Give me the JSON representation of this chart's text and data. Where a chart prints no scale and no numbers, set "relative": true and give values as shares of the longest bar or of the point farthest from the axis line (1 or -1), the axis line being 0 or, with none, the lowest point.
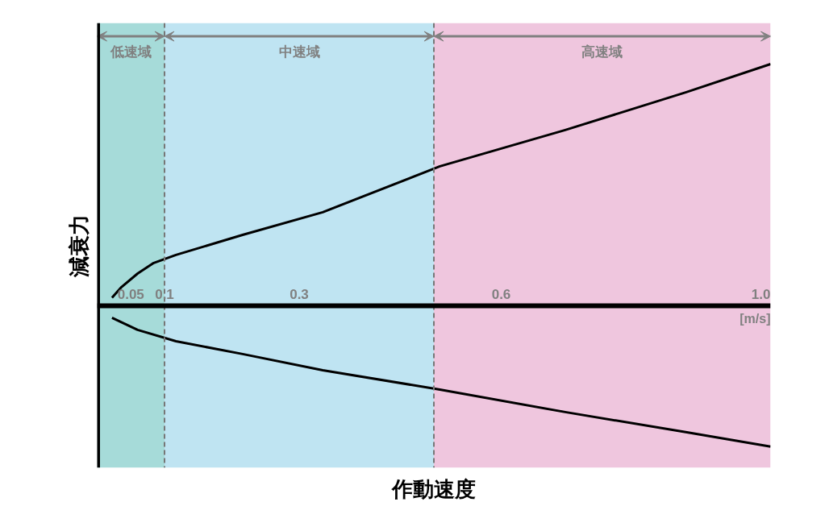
{
  "chart_data": {
    "type": "line",
    "xlabel": "作動速度",
    "ylabel": "減衰力",
    "relative": true,
    "xlim": [
      0,
      1.0
    ],
    "xticks": [
      0.05,
      0.1,
      0.3,
      0.6,
      {
        "value": 1.0,
        "label": "1.0"
      }
    ],
    "series": [
      {
        "color": "#000000",
        "x": [
          0.022,
          0.036,
          0.06,
          0.084,
          0.117,
          0.216,
          0.335,
          0.509,
          0.695,
          0.874,
          1.0
        ],
        "values": [
          0.033,
          0.077,
          0.133,
          0.177,
          0.21,
          0.293,
          0.387,
          0.577,
          0.727,
          0.883,
          1.0
        ]
      },
      {
        "color": "#000000",
        "x": [
          0.022,
          0.06,
          0.117,
          0.216,
          0.335,
          0.509,
          0.695,
          0.874,
          1.0
        ],
        "values": [
          -0.05,
          -0.1,
          -0.147,
          -0.2,
          -0.267,
          -0.347,
          -0.44,
          -0.523,
          -0.583
        ]
      }
    ],
    "ref_lines": [
      {
        "axis": "x",
        "value": 0.1,
        "color": "#777777",
        "line_style": "dashed"
      },
      {
        "axis": "x",
        "value": 0.5,
        "color": "#777777",
        "line_style": "dashed"
      }
    ],
    "bands": [
      {
        "axis": "x",
        "from": 0,
        "to": 0.1,
        "label": "低速域",
        "color": "#a6dbd9"
      },
      {
        "axis": "x",
        "from": 0.1,
        "to": 0.5,
        "label": "中速域",
        "color": "#bfe4f2"
      },
      {
        "axis": "x",
        "from": 0.5,
        "to": 1.0,
        "label": "高速域",
        "color": "#efc6de"
      }
    ],
    "annotations": [
      "[m/s]"
    ],
    "marker": "none",
    "line_style": "solid"
  }
}
